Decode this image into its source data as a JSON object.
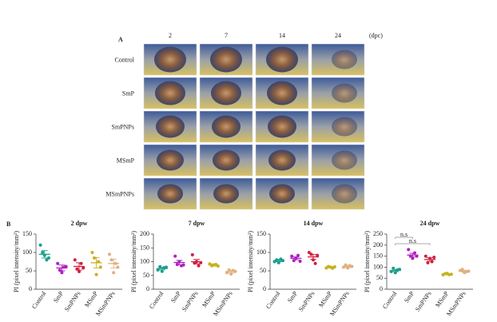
{
  "panel_a": {
    "label": "A",
    "columns": [
      "2",
      "7",
      "14",
      "24"
    ],
    "unit": "(dpc)",
    "rows": [
      "Control",
      "SmP",
      "SmPNPs",
      "MSmP",
      "MSmPNPs"
    ]
  },
  "panel_b_label": "B",
  "chart_data": [
    {
      "type": "dot",
      "title": "2 dpw",
      "ylabel": "PI (pixel intensity/mm²)",
      "categories": [
        "Control",
        "SmP",
        "SmPNPs",
        "MSmP",
        "MSmPNPs"
      ],
      "colors": [
        "#1a9e8a",
        "#b020c0",
        "#d02040",
        "#c8b020",
        "#e0b080"
      ],
      "points": [
        [
          120,
          100,
          92,
          80,
          85
        ],
        [
          70,
          52,
          45,
          60,
          62
        ],
        [
          80,
          55,
          48,
          70,
          58
        ],
        [
          100,
          85,
          40,
          75,
          60
        ],
        [
          95,
          80,
          45,
          70,
          60
        ]
      ],
      "means": [
        95,
        58,
        62,
        72,
        70
      ],
      "sems": [
        10,
        8,
        10,
        14,
        12
      ],
      "ylim": [
        0,
        150
      ],
      "yticks": [
        0,
        50,
        100,
        150
      ]
    },
    {
      "type": "dot",
      "title": "7 dpw",
      "ylabel": "PI (pixel intensity/mm²)",
      "categories": [
        "Control",
        "SmP",
        "SmPNPs",
        "MSmP",
        "MSmPNPs"
      ],
      "colors": [
        "#1a9e8a",
        "#b020c0",
        "#d02040",
        "#c8b020",
        "#e0b080"
      ],
      "points": [
        [
          70,
          82,
          65,
          78,
          80
        ],
        [
          120,
          90,
          100,
          85,
          88
        ],
        [
          125,
          95,
          100,
          85,
          96
        ],
        [
          92,
          85,
          88,
          90,
          84
        ],
        [
          60,
          70,
          55,
          68,
          65
        ]
      ],
      "means": [
        75,
        97,
        100,
        88,
        64
      ],
      "sems": [
        5,
        8,
        8,
        4,
        5
      ],
      "ylim": [
        0,
        200
      ],
      "yticks": [
        0,
        50,
        100,
        150,
        200
      ]
    },
    {
      "type": "dot",
      "title": "14 dpw",
      "ylabel": "PI (pixel intensity/mm²)",
      "categories": [
        "Control",
        "SmP",
        "SmPNPs",
        "MSmP",
        "MSmPNPs"
      ],
      "colors": [
        "#1a9e8a",
        "#b020c0",
        "#d02040",
        "#c8b020",
        "#e0b080"
      ],
      "points": [
        [
          75,
          80,
          72,
          82,
          78
        ],
        [
          90,
          78,
          85,
          92,
          76
        ],
        [
          100,
          95,
          80,
          70,
          92
        ],
        [
          58,
          62,
          60,
          57,
          61
        ],
        [
          60,
          66,
          58,
          64,
          62
        ]
      ],
      "means": [
        78,
        84,
        88,
        60,
        62
      ],
      "sems": [
        3,
        4,
        7,
        2,
        3
      ],
      "ylim": [
        0,
        150
      ],
      "yticks": [
        0,
        50,
        100,
        150
      ]
    },
    {
      "type": "dot",
      "title": "24 dpw",
      "ylabel": "PI (pixel intensity/mm²)",
      "categories": [
        "Control",
        "SmP",
        "SmPNPs",
        "MSmP",
        "MSmPNPs"
      ],
      "colors": [
        "#1a9e8a",
        "#b020c0",
        "#d02040",
        "#c8b020",
        "#e0b080"
      ],
      "points": [
        [
          80,
          95,
          75,
          88,
          90
        ],
        [
          180,
          150,
          140,
          165,
          150
        ],
        [
          150,
          120,
          140,
          125,
          145
        ],
        [
          65,
          70,
          72,
          66,
          68
        ],
        [
          85,
          90,
          75,
          80,
          82
        ]
      ],
      "means": [
        85,
        155,
        135,
        68,
        82
      ],
      "sems": [
        5,
        8,
        8,
        3,
        4
      ],
      "ylim": [
        0,
        250
      ],
      "yticks": [
        0,
        50,
        100,
        150,
        200,
        250
      ],
      "annotations": [
        "n.s",
        "n.s"
      ]
    }
  ]
}
